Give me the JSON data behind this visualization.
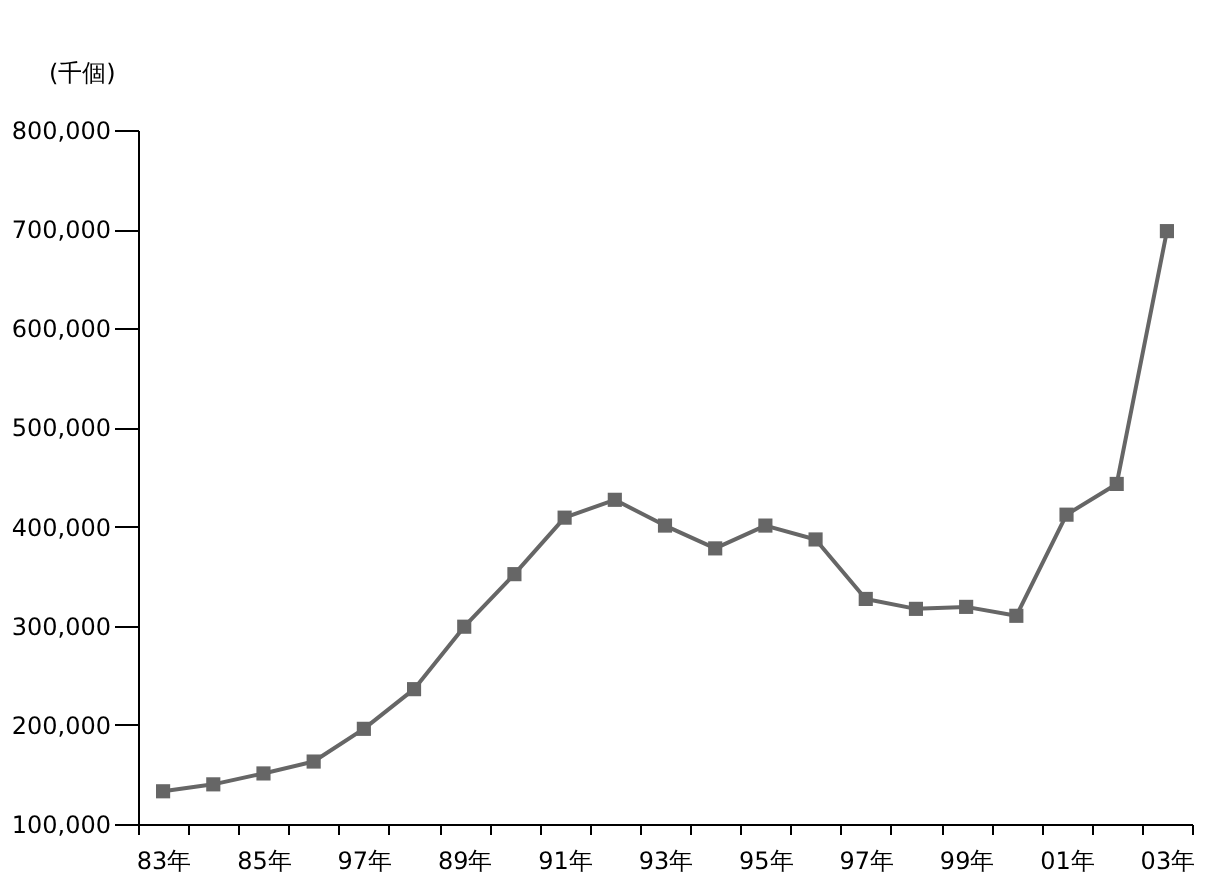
{
  "chart_data": {
    "type": "line",
    "ylabel": "(千個)",
    "categories": [
      "83年",
      null,
      "85年",
      null,
      "97年",
      null,
      "89年",
      null,
      "91年",
      null,
      "93年",
      null,
      "95年",
      null,
      "97年",
      null,
      "99年",
      null,
      "01年",
      null,
      "03年"
    ],
    "series": [
      {
        "color": "#666666",
        "values": [
          133000,
          140000,
          151000,
          163000,
          196000,
          236000,
          299000,
          352000,
          409000,
          427000,
          401000,
          378000,
          401000,
          387000,
          327000,
          317000,
          319000,
          310000,
          412000,
          443000,
          698000
        ]
      }
    ],
    "ylim": [
      100000,
      800000
    ],
    "yticks": [
      {
        "value": 100000,
        "label": "100,000"
      },
      {
        "value": 200000,
        "label": "200,000"
      },
      {
        "value": 300000,
        "label": "300,000"
      },
      {
        "value": 400000,
        "label": "400,000"
      },
      {
        "value": 500000,
        "label": "500,000"
      },
      {
        "value": 600000,
        "label": "600,000"
      },
      {
        "value": 700000,
        "label": "700,000"
      },
      {
        "value": 800000,
        "label": "800,000"
      }
    ],
    "marker": "square",
    "line_style": "solid",
    "grid": false,
    "legend": false
  }
}
